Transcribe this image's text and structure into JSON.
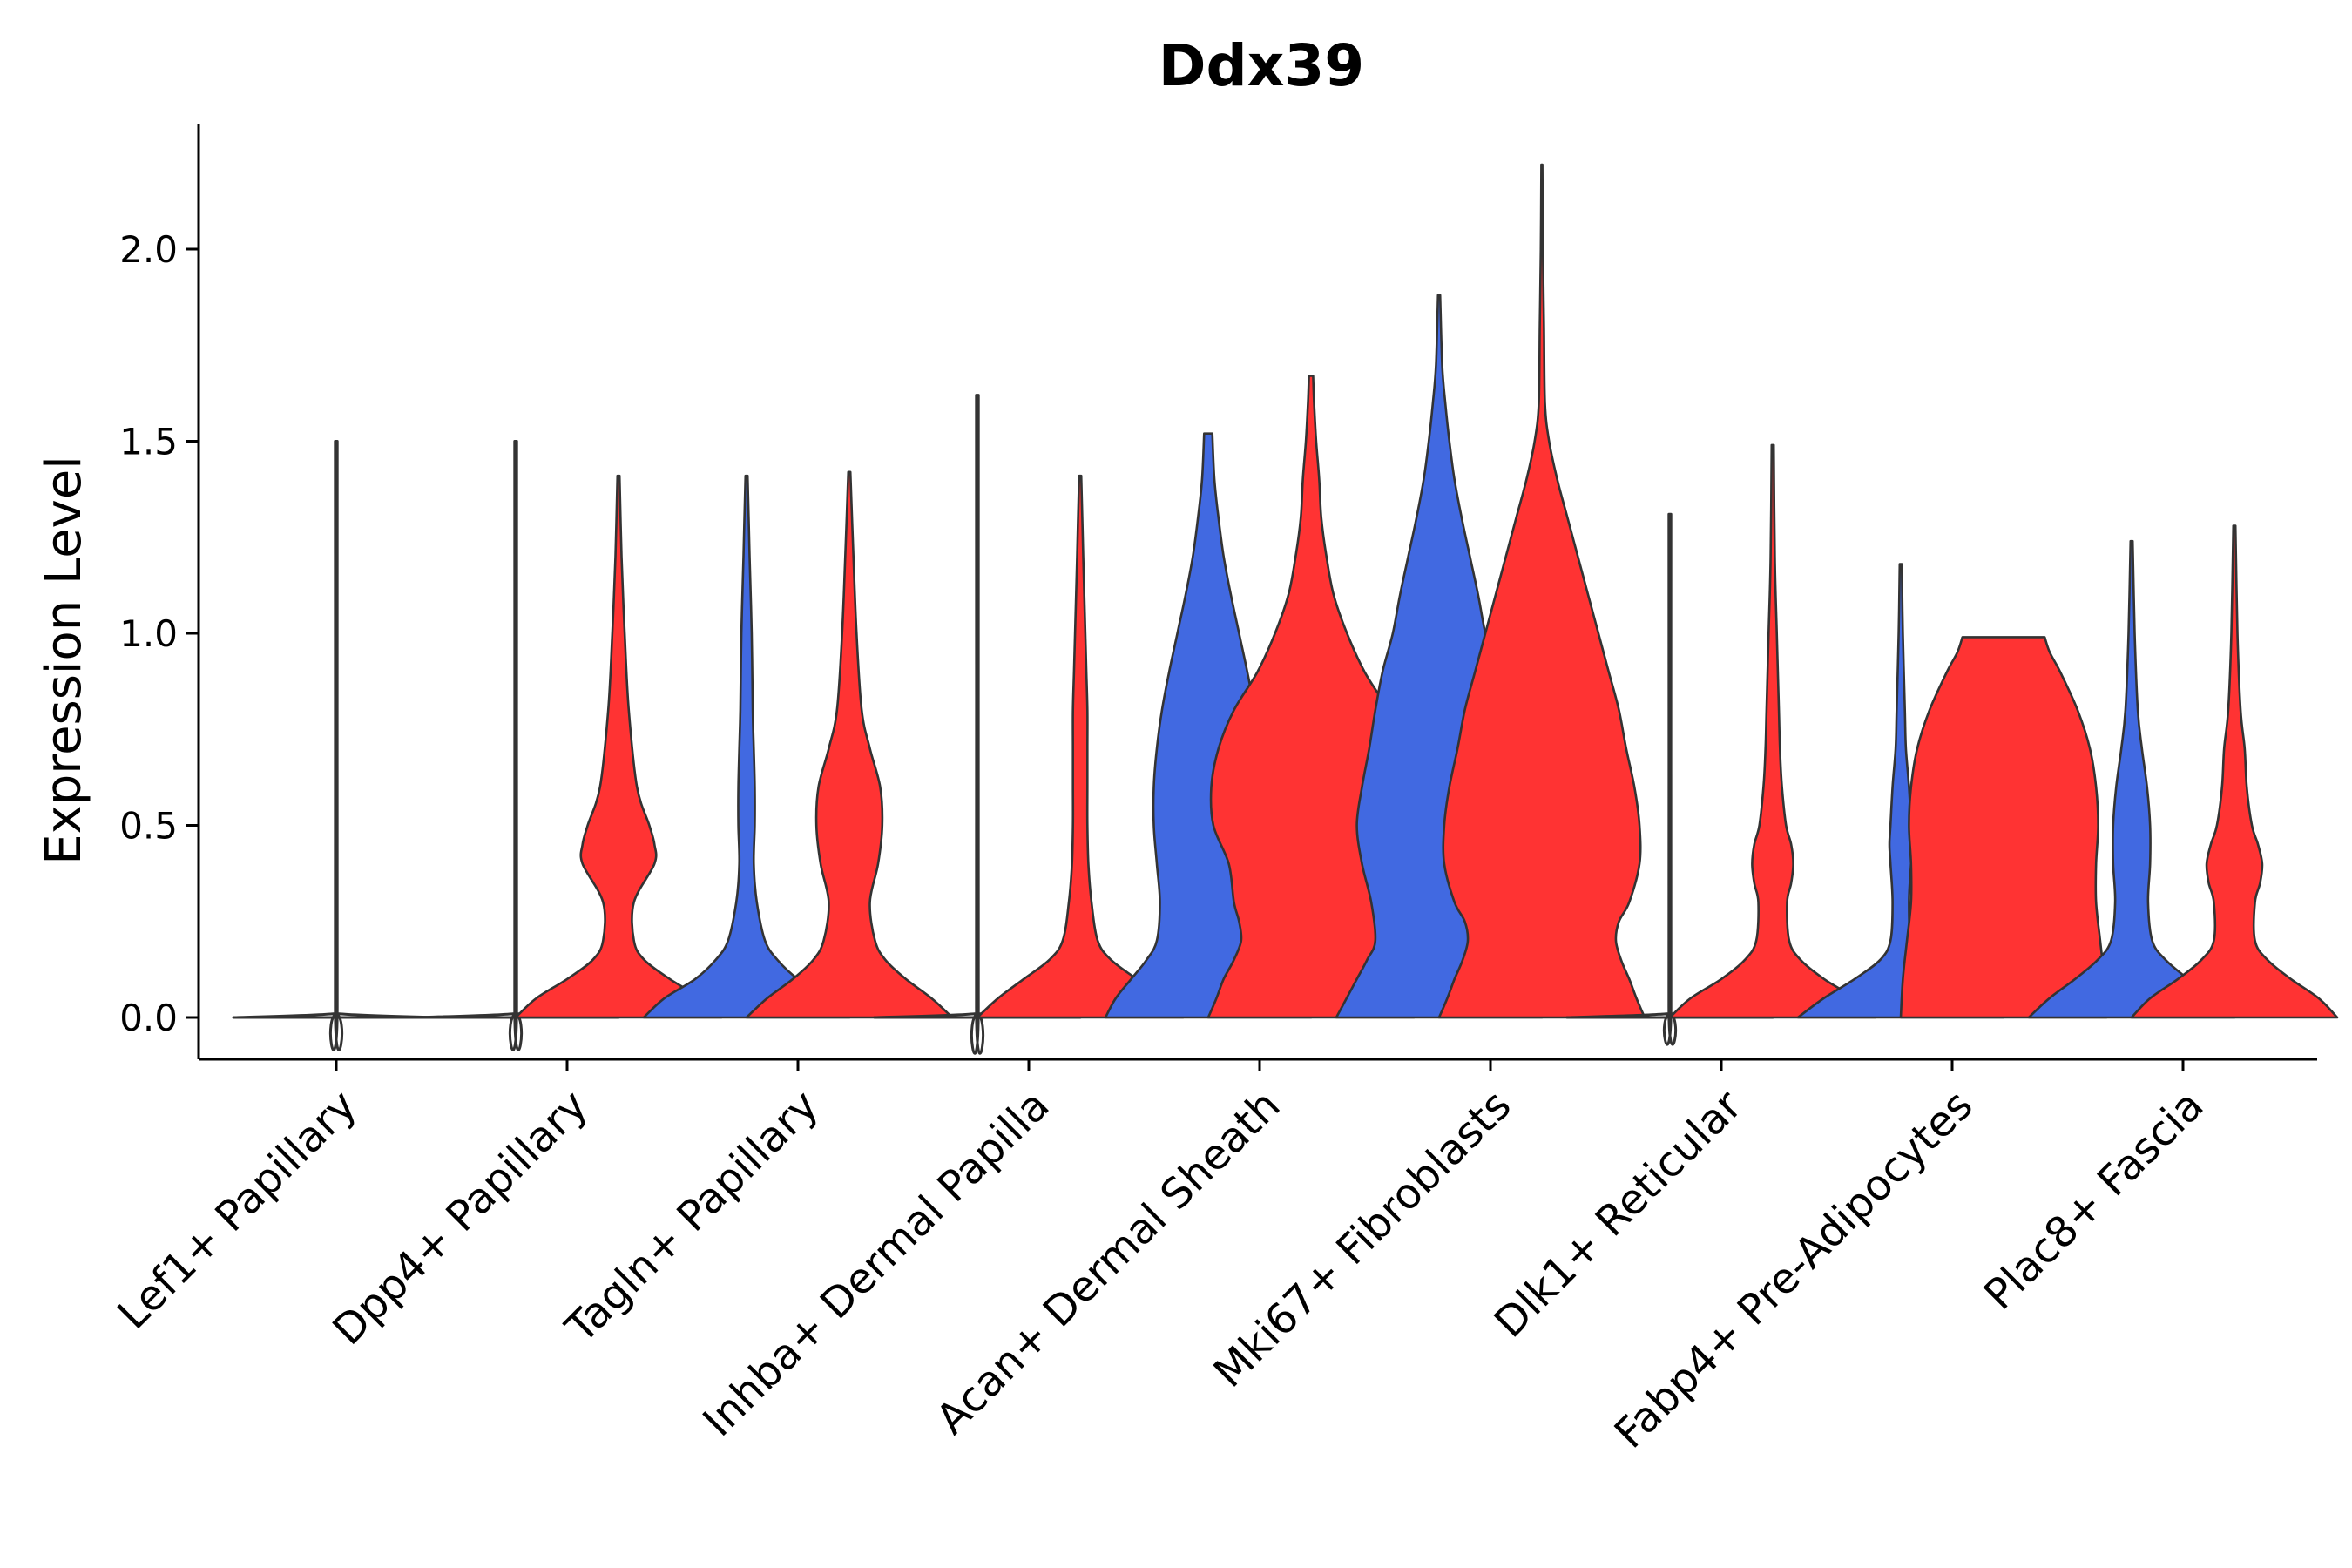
{
  "chart_data": {
    "type": "violin",
    "title": "Ddx39",
    "xlabel": "",
    "ylabel": "Expression Level",
    "ylim": [
      -0.11,
      2.33
    ],
    "yticks": [
      0.0,
      0.5,
      1.0,
      1.5,
      2.0
    ],
    "ytick_labels": [
      "0.0",
      "0.5",
      "1.0",
      "1.5",
      "2.0"
    ],
    "colors": {
      "group_a": "#4169e1",
      "group_b": "#ff3333",
      "outline": "#333333",
      "axis": "#000000"
    },
    "categories": [
      "Lef1+ Papillary",
      "Dpp4+ Papillary",
      "Tagln+ Papillary",
      "Inhba+ Dermal Papilla",
      "Acan+ Dermal Sheath",
      "Mki67+ Fibroblasts",
      "Dlk1+ Reticular",
      "Fabp4+ Pre-Adipocytes",
      "Plac8+ Fascia"
    ],
    "violins": [
      {
        "category": "Lef1+ Papillary",
        "side": "center",
        "group": "group_a",
        "max": 1.5,
        "profile": [
          [
            0,
            1
          ],
          [
            0.01,
            0.02
          ],
          [
            0.03,
            0.01
          ],
          [
            1.5,
            0.01
          ]
        ]
      },
      {
        "category": "Dpp4+ Papillary",
        "side": "left",
        "group": "group_a",
        "max": 1.5,
        "profile": [
          [
            0,
            1
          ],
          [
            0.01,
            0.02
          ],
          [
            0.03,
            0.01
          ],
          [
            1.5,
            0.01
          ]
        ]
      },
      {
        "category": "Dpp4+ Papillary",
        "side": "right",
        "group": "group_b",
        "max": 1.41,
        "profile": [
          [
            0,
            1
          ],
          [
            0.05,
            0.8
          ],
          [
            0.1,
            0.5
          ],
          [
            0.15,
            0.25
          ],
          [
            0.2,
            0.15
          ],
          [
            0.3,
            0.15
          ],
          [
            0.4,
            0.35
          ],
          [
            0.45,
            0.35
          ],
          [
            0.5,
            0.3
          ],
          [
            0.6,
            0.18
          ],
          [
            0.8,
            0.1
          ],
          [
            1.0,
            0.06
          ],
          [
            1.2,
            0.03
          ],
          [
            1.41,
            0.01
          ]
        ]
      },
      {
        "category": "Tagln+ Papillary",
        "side": "left",
        "group": "group_a",
        "max": 1.41,
        "profile": [
          [
            0,
            1
          ],
          [
            0.05,
            0.8
          ],
          [
            0.1,
            0.5
          ],
          [
            0.15,
            0.3
          ],
          [
            0.2,
            0.18
          ],
          [
            0.3,
            0.1
          ],
          [
            0.4,
            0.07
          ],
          [
            0.5,
            0.08
          ],
          [
            0.6,
            0.08
          ],
          [
            0.7,
            0.07
          ],
          [
            0.8,
            0.06
          ],
          [
            1.0,
            0.05
          ],
          [
            1.2,
            0.03
          ],
          [
            1.41,
            0.01
          ]
        ]
      },
      {
        "category": "Tagln+ Papillary",
        "side": "right",
        "group": "group_b",
        "max": 1.42,
        "profile": [
          [
            0,
            1
          ],
          [
            0.05,
            0.8
          ],
          [
            0.1,
            0.55
          ],
          [
            0.15,
            0.35
          ],
          [
            0.2,
            0.25
          ],
          [
            0.3,
            0.2
          ],
          [
            0.4,
            0.28
          ],
          [
            0.5,
            0.32
          ],
          [
            0.6,
            0.3
          ],
          [
            0.7,
            0.2
          ],
          [
            0.8,
            0.12
          ],
          [
            1.0,
            0.07
          ],
          [
            1.2,
            0.04
          ],
          [
            1.42,
            0.01
          ]
        ]
      },
      {
        "category": "Inhba+ Dermal Papilla",
        "side": "left",
        "group": "group_a",
        "max": 1.62,
        "profile": [
          [
            0,
            1
          ],
          [
            0.01,
            0.02
          ],
          [
            0.03,
            0.01
          ],
          [
            1.62,
            0.01
          ]
        ]
      },
      {
        "category": "Inhba+ Dermal Papilla",
        "side": "right",
        "group": "group_b",
        "max": 1.41,
        "profile": [
          [
            0,
            1
          ],
          [
            0.05,
            0.8
          ],
          [
            0.1,
            0.55
          ],
          [
            0.15,
            0.3
          ],
          [
            0.2,
            0.17
          ],
          [
            0.3,
            0.11
          ],
          [
            0.4,
            0.08
          ],
          [
            0.5,
            0.07
          ],
          [
            0.6,
            0.07
          ],
          [
            0.7,
            0.07
          ],
          [
            0.8,
            0.07
          ],
          [
            0.9,
            0.06
          ],
          [
            1.0,
            0.05
          ],
          [
            1.2,
            0.03
          ],
          [
            1.41,
            0.01
          ]
        ]
      },
      {
        "category": "Acan+ Dermal Sheath",
        "side": "left",
        "group": "group_a",
        "max": 1.52,
        "profile": [
          [
            0,
            1
          ],
          [
            0.05,
            0.9
          ],
          [
            0.1,
            0.75
          ],
          [
            0.15,
            0.6
          ],
          [
            0.2,
            0.5
          ],
          [
            0.3,
            0.47
          ],
          [
            0.4,
            0.5
          ],
          [
            0.5,
            0.53
          ],
          [
            0.6,
            0.53
          ],
          [
            0.7,
            0.5
          ],
          [
            0.8,
            0.45
          ],
          [
            0.9,
            0.38
          ],
          [
            1.0,
            0.3
          ],
          [
            1.1,
            0.22
          ],
          [
            1.2,
            0.15
          ],
          [
            1.3,
            0.1
          ],
          [
            1.4,
            0.06
          ],
          [
            1.52,
            0.04
          ]
        ]
      },
      {
        "category": "Acan+ Dermal Sheath",
        "side": "right",
        "group": "group_b",
        "max": 1.67,
        "profile": [
          [
            0,
            1
          ],
          [
            0.05,
            0.92
          ],
          [
            0.1,
            0.85
          ],
          [
            0.15,
            0.75
          ],
          [
            0.2,
            0.68
          ],
          [
            0.25,
            0.7
          ],
          [
            0.3,
            0.75
          ],
          [
            0.4,
            0.8
          ],
          [
            0.5,
            0.95
          ],
          [
            0.6,
            0.97
          ],
          [
            0.7,
            0.9
          ],
          [
            0.8,
            0.75
          ],
          [
            0.9,
            0.52
          ],
          [
            1.0,
            0.35
          ],
          [
            1.1,
            0.22
          ],
          [
            1.2,
            0.15
          ],
          [
            1.3,
            0.1
          ],
          [
            1.4,
            0.08
          ],
          [
            1.5,
            0.05
          ],
          [
            1.6,
            0.03
          ],
          [
            1.67,
            0.02
          ]
        ]
      },
      {
        "category": "Mki67+ Fibroblasts",
        "side": "left",
        "group": "group_a",
        "max": 1.88,
        "profile": [
          [
            0,
            1
          ],
          [
            0.05,
            0.9
          ],
          [
            0.1,
            0.8
          ],
          [
            0.15,
            0.7
          ],
          [
            0.2,
            0.62
          ],
          [
            0.3,
            0.66
          ],
          [
            0.4,
            0.75
          ],
          [
            0.5,
            0.8
          ],
          [
            0.6,
            0.75
          ],
          [
            0.7,
            0.68
          ],
          [
            0.8,
            0.62
          ],
          [
            0.9,
            0.55
          ],
          [
            1.0,
            0.45
          ],
          [
            1.1,
            0.38
          ],
          [
            1.2,
            0.3
          ],
          [
            1.3,
            0.22
          ],
          [
            1.4,
            0.15
          ],
          [
            1.5,
            0.1
          ],
          [
            1.6,
            0.06
          ],
          [
            1.7,
            0.03
          ],
          [
            1.88,
            0.01
          ]
        ]
      },
      {
        "category": "Mki67+ Fibroblasts",
        "side": "right",
        "group": "group_b",
        "max": 2.22,
        "profile": [
          [
            0,
            1
          ],
          [
            0.05,
            0.92
          ],
          [
            0.1,
            0.85
          ],
          [
            0.15,
            0.77
          ],
          [
            0.2,
            0.72
          ],
          [
            0.25,
            0.75
          ],
          [
            0.3,
            0.85
          ],
          [
            0.4,
            0.95
          ],
          [
            0.5,
            0.95
          ],
          [
            0.6,
            0.9
          ],
          [
            0.7,
            0.82
          ],
          [
            0.8,
            0.75
          ],
          [
            0.9,
            0.65
          ],
          [
            1.0,
            0.55
          ],
          [
            1.1,
            0.45
          ],
          [
            1.2,
            0.35
          ],
          [
            1.3,
            0.25
          ],
          [
            1.4,
            0.15
          ],
          [
            1.5,
            0.07
          ],
          [
            1.6,
            0.03
          ],
          [
            1.8,
            0.02
          ],
          [
            2.0,
            0.01
          ],
          [
            2.22,
            0.005
          ]
        ]
      },
      {
        "category": "Dlk1+ Reticular",
        "side": "left",
        "group": "group_a",
        "max": 1.31,
        "profile": [
          [
            0,
            1
          ],
          [
            0.01,
            0.02
          ],
          [
            0.03,
            0.01
          ],
          [
            1.31,
            0.01
          ]
        ]
      },
      {
        "category": "Dlk1+ Reticular",
        "side": "right",
        "group": "group_b",
        "max": 1.49,
        "profile": [
          [
            0,
            1
          ],
          [
            0.05,
            0.8
          ],
          [
            0.1,
            0.5
          ],
          [
            0.15,
            0.27
          ],
          [
            0.2,
            0.16
          ],
          [
            0.3,
            0.14
          ],
          [
            0.35,
            0.18
          ],
          [
            0.4,
            0.2
          ],
          [
            0.45,
            0.18
          ],
          [
            0.5,
            0.13
          ],
          [
            0.6,
            0.09
          ],
          [
            0.7,
            0.07
          ],
          [
            0.8,
            0.06
          ],
          [
            1.0,
            0.04
          ],
          [
            1.2,
            0.02
          ],
          [
            1.49,
            0.01
          ]
        ]
      },
      {
        "category": "Fabp4+ Pre-Adipocytes",
        "side": "left",
        "group": "group_a",
        "max": 1.18,
        "profile": [
          [
            0,
            1
          ],
          [
            0.05,
            0.75
          ],
          [
            0.1,
            0.45
          ],
          [
            0.15,
            0.2
          ],
          [
            0.2,
            0.1
          ],
          [
            0.3,
            0.08
          ],
          [
            0.4,
            0.1
          ],
          [
            0.45,
            0.11
          ],
          [
            0.5,
            0.1
          ],
          [
            0.6,
            0.08
          ],
          [
            0.7,
            0.05
          ],
          [
            0.8,
            0.04
          ],
          [
            1.0,
            0.02
          ],
          [
            1.18,
            0.01
          ]
        ]
      },
      {
        "category": "Fabp4+ Pre-Adipocytes",
        "side": "right",
        "group": "group_b",
        "max": 0.99,
        "profile": [
          [
            0,
            1
          ],
          [
            0.1,
            0.98
          ],
          [
            0.2,
            0.94
          ],
          [
            0.3,
            0.9
          ],
          [
            0.4,
            0.9
          ],
          [
            0.5,
            0.92
          ],
          [
            0.6,
            0.9
          ],
          [
            0.7,
            0.84
          ],
          [
            0.8,
            0.72
          ],
          [
            0.9,
            0.55
          ],
          [
            0.95,
            0.45
          ],
          [
            0.99,
            0.4
          ]
        ]
      },
      {
        "category": "Plac8+ Fascia",
        "side": "left",
        "group": "group_a",
        "max": 1.24,
        "profile": [
          [
            0,
            1
          ],
          [
            0.05,
            0.8
          ],
          [
            0.1,
            0.55
          ],
          [
            0.15,
            0.33
          ],
          [
            0.2,
            0.2
          ],
          [
            0.3,
            0.16
          ],
          [
            0.4,
            0.18
          ],
          [
            0.5,
            0.18
          ],
          [
            0.6,
            0.15
          ],
          [
            0.7,
            0.1
          ],
          [
            0.8,
            0.06
          ],
          [
            1.0,
            0.03
          ],
          [
            1.24,
            0.01
          ]
        ]
      },
      {
        "category": "Plac8+ Fascia",
        "side": "right",
        "group": "group_b",
        "max": 1.28,
        "profile": [
          [
            0,
            1
          ],
          [
            0.05,
            0.82
          ],
          [
            0.1,
            0.55
          ],
          [
            0.15,
            0.32
          ],
          [
            0.2,
            0.2
          ],
          [
            0.3,
            0.2
          ],
          [
            0.35,
            0.25
          ],
          [
            0.4,
            0.27
          ],
          [
            0.45,
            0.23
          ],
          [
            0.5,
            0.17
          ],
          [
            0.6,
            0.12
          ],
          [
            0.7,
            0.1
          ],
          [
            0.8,
            0.06
          ],
          [
            1.0,
            0.03
          ],
          [
            1.28,
            0.01
          ]
        ]
      }
    ]
  }
}
